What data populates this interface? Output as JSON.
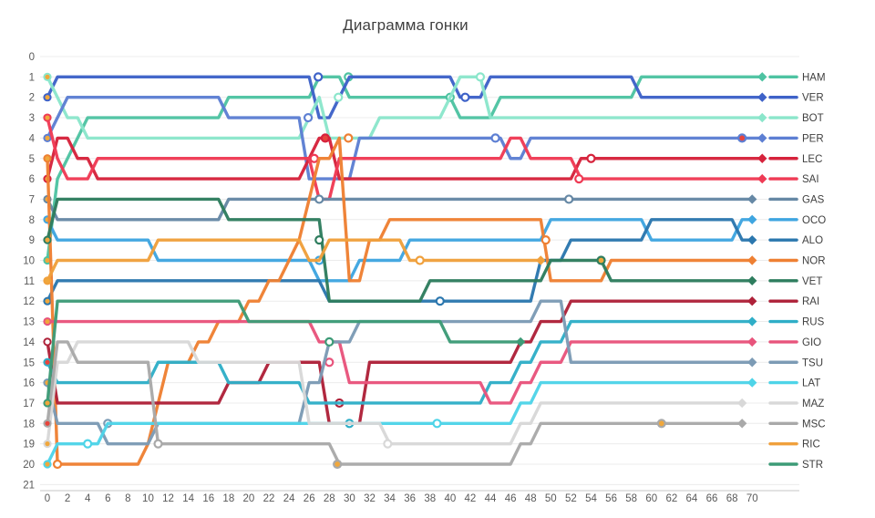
{
  "app": {
    "title": "Диаграмма гонки"
  },
  "chart_data": {
    "type": "line",
    "title": "Диаграмма гонки",
    "xlabel": "",
    "ylabel": "",
    "x_ticks": [
      0,
      2,
      4,
      6,
      8,
      10,
      12,
      14,
      16,
      18,
      20,
      22,
      24,
      26,
      28,
      30,
      32,
      34,
      36,
      38,
      40,
      42,
      44,
      46,
      48,
      50,
      52,
      54,
      56,
      58,
      60,
      62,
      64,
      66,
      68,
      70
    ],
    "y_ticks": [
      0,
      1,
      2,
      3,
      4,
      5,
      6,
      7,
      8,
      9,
      10,
      11,
      12,
      13,
      14,
      15,
      16,
      17,
      18,
      19,
      20,
      21
    ],
    "x_range": [
      0,
      71
    ],
    "y_range": [
      0,
      21
    ],
    "grid": "horizontal",
    "legend_position": "right",
    "tyre_colors": {
      "medium": "#F0A73C",
      "hard": "#FFFFFF",
      "soft": "#E8443C"
    },
    "axis_text_color": "#595959",
    "legend_text_color": "#404040",
    "grid_color": "#ECECEC",
    "axis_line_color": "#D9D9D9",
    "drivers": [
      {
        "code": "HAM",
        "color": "#4EC3A2",
        "start_tyre": "medium",
        "points": [
          [
            0,
            10
          ],
          [
            1,
            6
          ],
          [
            2,
            5
          ],
          [
            3,
            4
          ],
          [
            4,
            3
          ],
          [
            18,
            2
          ],
          [
            27,
            1
          ],
          [
            30,
            2
          ],
          [
            41,
            3
          ],
          [
            45,
            2
          ],
          [
            59,
            1
          ]
        ],
        "pits": [
          [
            29.9,
            1,
            "hard"
          ],
          [
            40,
            2,
            "hard"
          ]
        ],
        "end": {
          "lap": 71,
          "pos": 1,
          "status": "finished"
        }
      },
      {
        "code": "VER",
        "color": "#3E62C8",
        "start_tyre": "medium",
        "points": [
          [
            0,
            2
          ],
          [
            1,
            1
          ],
          [
            27,
            3
          ],
          [
            29,
            2
          ],
          [
            30,
            1
          ],
          [
            41,
            2
          ],
          [
            44,
            1
          ],
          [
            59,
            2
          ]
        ],
        "pits": [
          [
            26.9,
            1,
            "hard"
          ],
          [
            41.5,
            2,
            "hard"
          ]
        ],
        "end": {
          "lap": 71,
          "pos": 2,
          "status": "finished"
        }
      },
      {
        "code": "BOT",
        "color": "#8BE6CB",
        "start_tyre": "medium",
        "points": [
          [
            0,
            1
          ],
          [
            1,
            2
          ],
          [
            2,
            3
          ],
          [
            4,
            4
          ],
          [
            26,
            3
          ],
          [
            27,
            2
          ],
          [
            28,
            4
          ],
          [
            33,
            3
          ],
          [
            40,
            2
          ],
          [
            41,
            1
          ],
          [
            44,
            3
          ]
        ],
        "pits": [
          [
            28.9,
            2,
            "hard"
          ],
          [
            43,
            1,
            "hard"
          ]
        ],
        "end": {
          "lap": 71,
          "pos": 3,
          "status": "finished"
        }
      },
      {
        "code": "PER",
        "color": "#5D7FD3",
        "start_tyre": "medium",
        "points": [
          [
            0,
            4
          ],
          [
            1,
            3
          ],
          [
            2,
            2
          ],
          [
            18,
            3
          ],
          [
            26,
            6
          ],
          [
            31,
            4
          ],
          [
            46,
            5
          ],
          [
            48,
            4
          ]
        ],
        "pits": [
          [
            25.9,
            3,
            "hard"
          ],
          [
            44.5,
            4,
            "hard"
          ],
          [
            69,
            4,
            "soft"
          ]
        ],
        "end": {
          "lap": 71,
          "pos": 4,
          "status": "finished"
        }
      },
      {
        "code": "LEC",
        "color": "#D6233C",
        "start_tyre": "medium",
        "points": [
          [
            0,
            6
          ],
          [
            1,
            4
          ],
          [
            3,
            5
          ],
          [
            5,
            6
          ],
          [
            26,
            5
          ],
          [
            27,
            4
          ],
          [
            29,
            6
          ],
          [
            53,
            5
          ]
        ],
        "pits": [
          [
            27.6,
            4,
            "soft"
          ],
          [
            54,
            5,
            "hard"
          ]
        ],
        "end": {
          "lap": 71,
          "pos": 5,
          "status": "finished"
        }
      },
      {
        "code": "SAI",
        "color": "#EF3B55",
        "start_tyre": "medium",
        "points": [
          [
            0,
            3
          ],
          [
            1,
            5
          ],
          [
            2,
            6
          ],
          [
            5,
            5
          ],
          [
            27,
            7
          ],
          [
            29,
            5
          ],
          [
            46,
            4
          ],
          [
            48,
            5
          ],
          [
            53,
            6
          ]
        ],
        "pits": [
          [
            26.5,
            5,
            "hard"
          ],
          [
            52.8,
            6,
            "hard"
          ]
        ],
        "end": {
          "lap": 71,
          "pos": 6,
          "status": "finished"
        }
      },
      {
        "code": "GAS",
        "color": "#6688A5",
        "start_tyre": "medium",
        "points": [
          [
            0,
            7
          ],
          [
            1,
            8
          ],
          [
            18,
            7
          ]
        ],
        "pits": [
          [
            27,
            7,
            "hard"
          ],
          [
            51.8,
            7,
            "hard"
          ]
        ],
        "end": {
          "lap": 70,
          "pos": 7,
          "status": "finished"
        }
      },
      {
        "code": "OCO",
        "color": "#3FA5E0",
        "start_tyre": "medium",
        "points": [
          [
            0,
            8
          ],
          [
            1,
            9
          ],
          [
            11,
            10
          ],
          [
            27,
            11
          ],
          [
            31,
            10
          ],
          [
            36,
            9
          ],
          [
            50,
            8
          ],
          [
            60,
            9
          ],
          [
            69,
            8
          ]
        ],
        "pits": [
          [
            27,
            10,
            "hard"
          ]
        ],
        "end": {
          "lap": 70,
          "pos": 8,
          "status": "finished"
        }
      },
      {
        "code": "ALO",
        "color": "#2B77AE",
        "start_tyre": "medium",
        "points": [
          [
            0,
            12
          ],
          [
            1,
            11
          ],
          [
            28,
            12
          ],
          [
            33,
            12
          ],
          [
            49,
            10
          ],
          [
            52,
            9
          ],
          [
            60,
            8
          ],
          [
            69,
            9
          ]
        ],
        "pits": [
          [
            39,
            12,
            "hard"
          ]
        ],
        "end": {
          "lap": 70,
          "pos": 9,
          "status": "finished"
        }
      },
      {
        "code": "NOR",
        "color": "#EE8033",
        "start_tyre": "medium",
        "points": [
          [
            0,
            5
          ],
          [
            1,
            20
          ],
          [
            10,
            19
          ],
          [
            11,
            17
          ],
          [
            12,
            15
          ],
          [
            15,
            14
          ],
          [
            17,
            13
          ],
          [
            20,
            12
          ],
          [
            22,
            11
          ],
          [
            24,
            10
          ],
          [
            25,
            9
          ],
          [
            26,
            7
          ],
          [
            27,
            5
          ],
          [
            29,
            4
          ],
          [
            30,
            11
          ],
          [
            32,
            9
          ],
          [
            34,
            8
          ],
          [
            50,
            11
          ],
          [
            56,
            10
          ]
        ],
        "pits": [
          [
            1,
            20,
            "hard"
          ],
          [
            29.9,
            4,
            "hard"
          ],
          [
            49.5,
            9,
            "hard"
          ]
        ],
        "end": {
          "lap": 70,
          "pos": 10,
          "status": "finished"
        }
      },
      {
        "code": "VET",
        "color": "#2E7D5E",
        "start_tyre": "medium",
        "points": [
          [
            0,
            9
          ],
          [
            1,
            7
          ],
          [
            18,
            8
          ],
          [
            26,
            8
          ],
          [
            28,
            12
          ],
          [
            38,
            11
          ],
          [
            50,
            10
          ],
          [
            56,
            11
          ]
        ],
        "pits": [
          [
            27,
            9,
            "hard"
          ],
          [
            55,
            10,
            "medium"
          ]
        ],
        "end": {
          "lap": 70,
          "pos": 11,
          "status": "finished"
        }
      },
      {
        "code": "RAI",
        "color": "#AE2139",
        "start_tyre": "hard",
        "points": [
          [
            0,
            14
          ],
          [
            1,
            17
          ],
          [
            18,
            16
          ],
          [
            22,
            15
          ],
          [
            28,
            18
          ],
          [
            32,
            15
          ],
          [
            47,
            14
          ],
          [
            49,
            13
          ],
          [
            52,
            12
          ]
        ],
        "pits": [
          [
            29,
            17,
            "hard"
          ]
        ],
        "end": {
          "lap": 70,
          "pos": 12,
          "status": "finished"
        }
      },
      {
        "code": "RUS",
        "color": "#2FAEC7",
        "start_tyre": "soft",
        "points": [
          [
            0,
            15
          ],
          [
            1,
            16
          ],
          [
            11,
            15
          ],
          [
            18,
            16
          ],
          [
            26,
            17
          ],
          [
            44,
            16
          ],
          [
            47,
            15
          ],
          [
            49,
            14
          ],
          [
            52,
            13
          ]
        ],
        "pits": [
          [
            30,
            18,
            "hard"
          ]
        ],
        "end": {
          "lap": 70,
          "pos": 13,
          "status": "finished"
        }
      },
      {
        "code": "GIO",
        "color": "#E8547C",
        "start_tyre": "medium",
        "points": [
          [
            0,
            13
          ],
          [
            27,
            14
          ],
          [
            30,
            16
          ],
          [
            44,
            17
          ],
          [
            47,
            16
          ],
          [
            49,
            15
          ],
          [
            52,
            14
          ]
        ],
        "pits": [
          [
            28,
            15,
            "hard"
          ]
        ],
        "end": {
          "lap": 70,
          "pos": 14,
          "status": "finished"
        }
      },
      {
        "code": "TSU",
        "color": "#7C9BB5",
        "start_tyre": "medium",
        "points": [
          [
            0,
            16
          ],
          [
            1,
            18
          ],
          [
            6,
            19
          ],
          [
            11,
            18
          ],
          [
            26,
            16
          ],
          [
            28,
            14
          ],
          [
            31,
            13
          ],
          [
            49,
            12
          ],
          [
            52,
            15
          ]
        ],
        "pits": [
          [
            6,
            18,
            "hard"
          ]
        ],
        "end": {
          "lap": 70,
          "pos": 15,
          "status": "finished"
        }
      },
      {
        "code": "LAT",
        "color": "#4ED4E8",
        "start_tyre": "medium",
        "points": [
          [
            0,
            20
          ],
          [
            1,
            19
          ],
          [
            6,
            18
          ],
          [
            26,
            18
          ],
          [
            39,
            18
          ],
          [
            47,
            17
          ],
          [
            49,
            16
          ]
        ],
        "pits": [
          [
            4,
            19,
            "hard"
          ],
          [
            38.7,
            18,
            "hard"
          ]
        ],
        "end": {
          "lap": 70,
          "pos": 16,
          "status": "finished"
        }
      },
      {
        "code": "MAZ",
        "color": "#D8D8D8",
        "start_tyre": "medium",
        "points": [
          [
            0,
            19
          ],
          [
            1,
            15
          ],
          [
            3,
            14
          ],
          [
            15,
            15
          ],
          [
            26,
            18
          ],
          [
            34,
            19
          ],
          [
            47,
            18
          ],
          [
            49,
            17
          ]
        ],
        "pits": [
          [
            33.8,
            19,
            "hard"
          ]
        ],
        "end": {
          "lap": 69,
          "pos": 17,
          "status": "finished"
        }
      },
      {
        "code": "MSC",
        "color": "#A9A9A9",
        "start_tyre": "soft",
        "points": [
          [
            0,
            18
          ],
          [
            1,
            14
          ],
          [
            3,
            15
          ],
          [
            11,
            19
          ],
          [
            29,
            20
          ],
          [
            47,
            19
          ],
          [
            49,
            18
          ]
        ],
        "pits": [
          [
            11,
            19,
            "hard"
          ],
          [
            28.8,
            20,
            "medium"
          ],
          [
            61,
            18,
            "medium"
          ]
        ],
        "end": {
          "lap": 69,
          "pos": 18,
          "status": "finished"
        }
      },
      {
        "code": "RIC",
        "color": "#F0A03C",
        "start_tyre": "medium",
        "points": [
          [
            0,
            11
          ],
          [
            1,
            10
          ],
          [
            11,
            9
          ],
          [
            26,
            10
          ],
          [
            28,
            9
          ],
          [
            36,
            10
          ]
        ],
        "pits": [
          [
            37,
            10,
            "hard"
          ]
        ],
        "end": {
          "lap": 49,
          "pos": 10,
          "status": "retired"
        }
      },
      {
        "code": "STR",
        "color": "#3D9B77",
        "start_tyre": "medium",
        "points": [
          [
            0,
            17
          ],
          [
            1,
            12
          ],
          [
            20,
            13
          ],
          [
            26,
            13
          ],
          [
            30,
            13
          ],
          [
            40,
            14
          ]
        ],
        "pits": [
          [
            28,
            14,
            "hard"
          ]
        ],
        "end": {
          "lap": 47,
          "pos": 14,
          "status": "retired"
        }
      }
    ]
  }
}
